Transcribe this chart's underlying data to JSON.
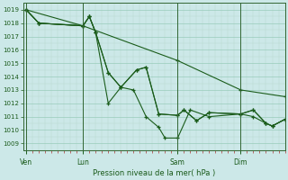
{
  "xlabel": "Pression niveau de la mer( hPa )",
  "bg_color": "#cce8e8",
  "line_color": "#1a5c1a",
  "ylim": [
    1008.5,
    1019.5
  ],
  "yticks": [
    1009,
    1010,
    1011,
    1012,
    1013,
    1014,
    1015,
    1016,
    1017,
    1018,
    1019
  ],
  "day_labels": [
    "Ven",
    "Lun",
    "Sam",
    "Dim"
  ],
  "day_positions": [
    0,
    9,
    24,
    34
  ],
  "xlim": [
    -0.5,
    41
  ],
  "series1_x": [
    0,
    9,
    24,
    34,
    41
  ],
  "series1_y": [
    1019.0,
    1017.8,
    1015.2,
    1013.0,
    1012.5
  ],
  "series2_x": [
    0,
    2,
    9,
    10,
    11,
    13,
    15,
    17.5,
    19,
    21,
    24,
    25,
    27,
    29,
    34,
    36,
    38,
    39,
    41
  ],
  "series2_y": [
    1019.0,
    1018.0,
    1017.8,
    1018.5,
    1017.3,
    1014.3,
    1013.2,
    1014.5,
    1014.7,
    1011.2,
    1011.1,
    1011.5,
    1010.7,
    1011.3,
    1011.2,
    1011.5,
    1010.5,
    1010.3,
    1010.8
  ],
  "series3_x": [
    0,
    2,
    9,
    10,
    11,
    13,
    15,
    17,
    19,
    21,
    22,
    24,
    26,
    29,
    34,
    36,
    38,
    39,
    41
  ],
  "series3_y": [
    1019.0,
    1018.0,
    1017.8,
    1018.5,
    1017.3,
    1012.0,
    1013.2,
    1013.0,
    1011.0,
    1010.2,
    1009.4,
    1009.4,
    1011.5,
    1011.0,
    1011.2,
    1011.0,
    1010.5,
    1010.3,
    1010.8
  ],
  "series4_x": [
    0,
    2,
    9,
    10,
    11,
    13,
    15,
    17.5,
    19,
    21,
    24,
    25,
    27,
    29,
    34,
    36,
    38,
    39,
    41
  ],
  "series4_y": [
    1019.0,
    1018.0,
    1017.8,
    1018.5,
    1017.3,
    1014.3,
    1013.2,
    1014.5,
    1014.7,
    1011.2,
    1011.1,
    1011.5,
    1010.7,
    1011.3,
    1011.2,
    1011.5,
    1010.5,
    1010.3,
    1010.8
  ]
}
